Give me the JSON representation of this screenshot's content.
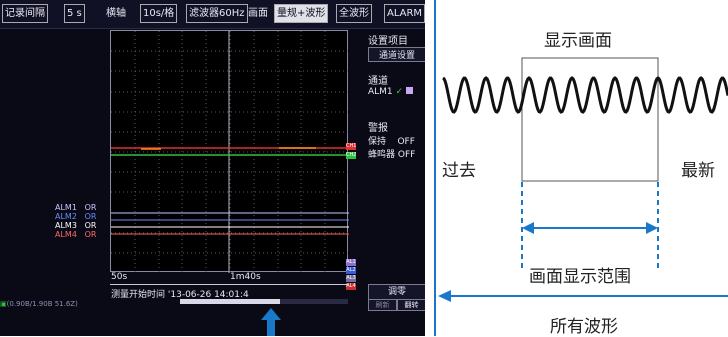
{
  "device": {
    "topbar": {
      "record_interval_label": "记录间隔",
      "record_interval_value": "5 s",
      "axis_label": "横轴",
      "axis_value": "10s/格",
      "filter_label": "滤波器60Hz",
      "screen_label": "画面",
      "screen_mode": "量规+波形",
      "full_wave": "全波形",
      "alarm": "ALARM"
    },
    "sidebar": {
      "settings_item": "设置项目",
      "channel_settings": "通道设置",
      "channel_label": "通道",
      "channel_value": "ALM1",
      "alarm_label": "警报",
      "hold_label": "保持",
      "hold_value": "OFF",
      "buzzer_label": "蜂鸣器",
      "buzzer_value": "OFF",
      "adjust_button": "调零",
      "btn_left": "刷新",
      "btn_right": "翻转"
    },
    "plot": {
      "alarm_labels": [
        {
          "name": "ALM1",
          "state": "OR",
          "color": "#c8c8ff"
        },
        {
          "name": "ALM2",
          "state": "OR",
          "color": "#6a8cff"
        },
        {
          "name": "ALM3",
          "state": "OR",
          "color": "#ffffff"
        },
        {
          "name": "ALM4",
          "state": "OR",
          "color": "#ff6a6a"
        }
      ],
      "time_start": "50s",
      "time_mid": "1m40s",
      "measure_start_label": "测量开始时间",
      "measure_start_value": "'13-06-26 14:01:4",
      "chip_ch1": "CH1",
      "chip_ch2": "CH2",
      "chip_al1": "AL1",
      "chip_al2": "AL2",
      "chip_al3": "AL3",
      "chip_al4": "AL4"
    },
    "status_bar": "(0.90B/1.90B 51.6Z)",
    "colors": {
      "trace_red": "#e03030",
      "trace_green": "#30c040",
      "trace_orange": "#ff8c1a"
    }
  },
  "diagram": {
    "screen_label": "显示画面",
    "past_label": "过去",
    "latest_label": "最新",
    "range_label": "画面显示范围",
    "all_label": "所有波形",
    "arrow_color": "#1a78c8"
  }
}
